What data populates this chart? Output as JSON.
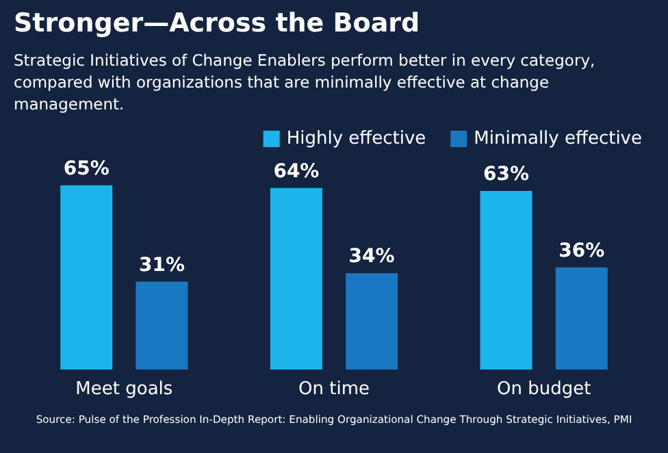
{
  "chart_data": {
    "type": "bar",
    "title": "Stronger—Across the Board",
    "subtitle": "Strategic Initiatives of Change Enablers perform better in every category, compared with organizations that are minimally effective at change management.",
    "categories": [
      "Meet goals",
      "On time",
      "On budget"
    ],
    "series": [
      {
        "name": "Highly effective",
        "color": "#1cb4ea",
        "values": [
          65,
          64,
          63
        ],
        "value_labels": [
          "65%",
          "64%",
          "63%"
        ]
      },
      {
        "name": "Minimally effective",
        "color": "#1a78c2",
        "values": [
          31,
          34,
          36
        ],
        "value_labels": [
          "31%",
          "34%",
          "36%"
        ]
      }
    ],
    "tick_labels": "x",
    "legend": "top right",
    "annotations": [
      "Source: Pulse of the Profession In-Depth Report: Enabling Organizational Change Through Strategic Initiatives, PMI"
    ]
  }
}
